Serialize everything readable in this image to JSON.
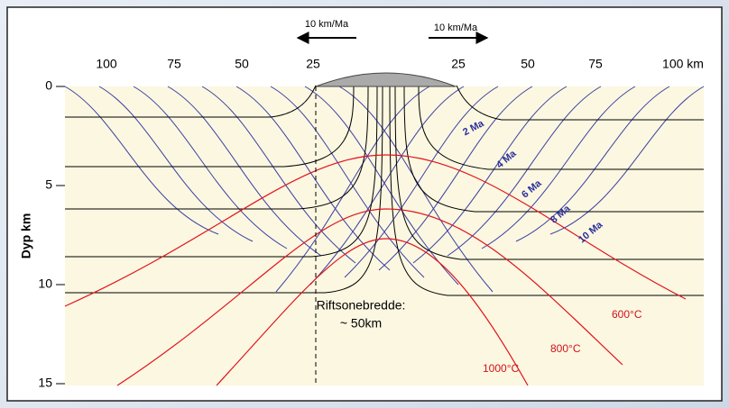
{
  "header": {
    "velocity_left": "10 km/Ma",
    "velocity_right": "10 km/Ma"
  },
  "x_axis": {
    "labels": [
      "100",
      "75",
      "50",
      "25",
      "25",
      "50",
      "75",
      "100 km"
    ]
  },
  "y_axis": {
    "title": "Dyp km",
    "labels": [
      "0",
      "5",
      "10",
      "15"
    ]
  },
  "annotation": {
    "lines": [
      "Riftsonebredde:",
      "~ 50km"
    ]
  },
  "isochrons": [
    "2 Ma",
    "4 Ma",
    "6 Ma",
    "8 Ma",
    "10 Ma"
  ],
  "isotherms": [
    "600°C",
    "800°C",
    "1000°C"
  ]
}
